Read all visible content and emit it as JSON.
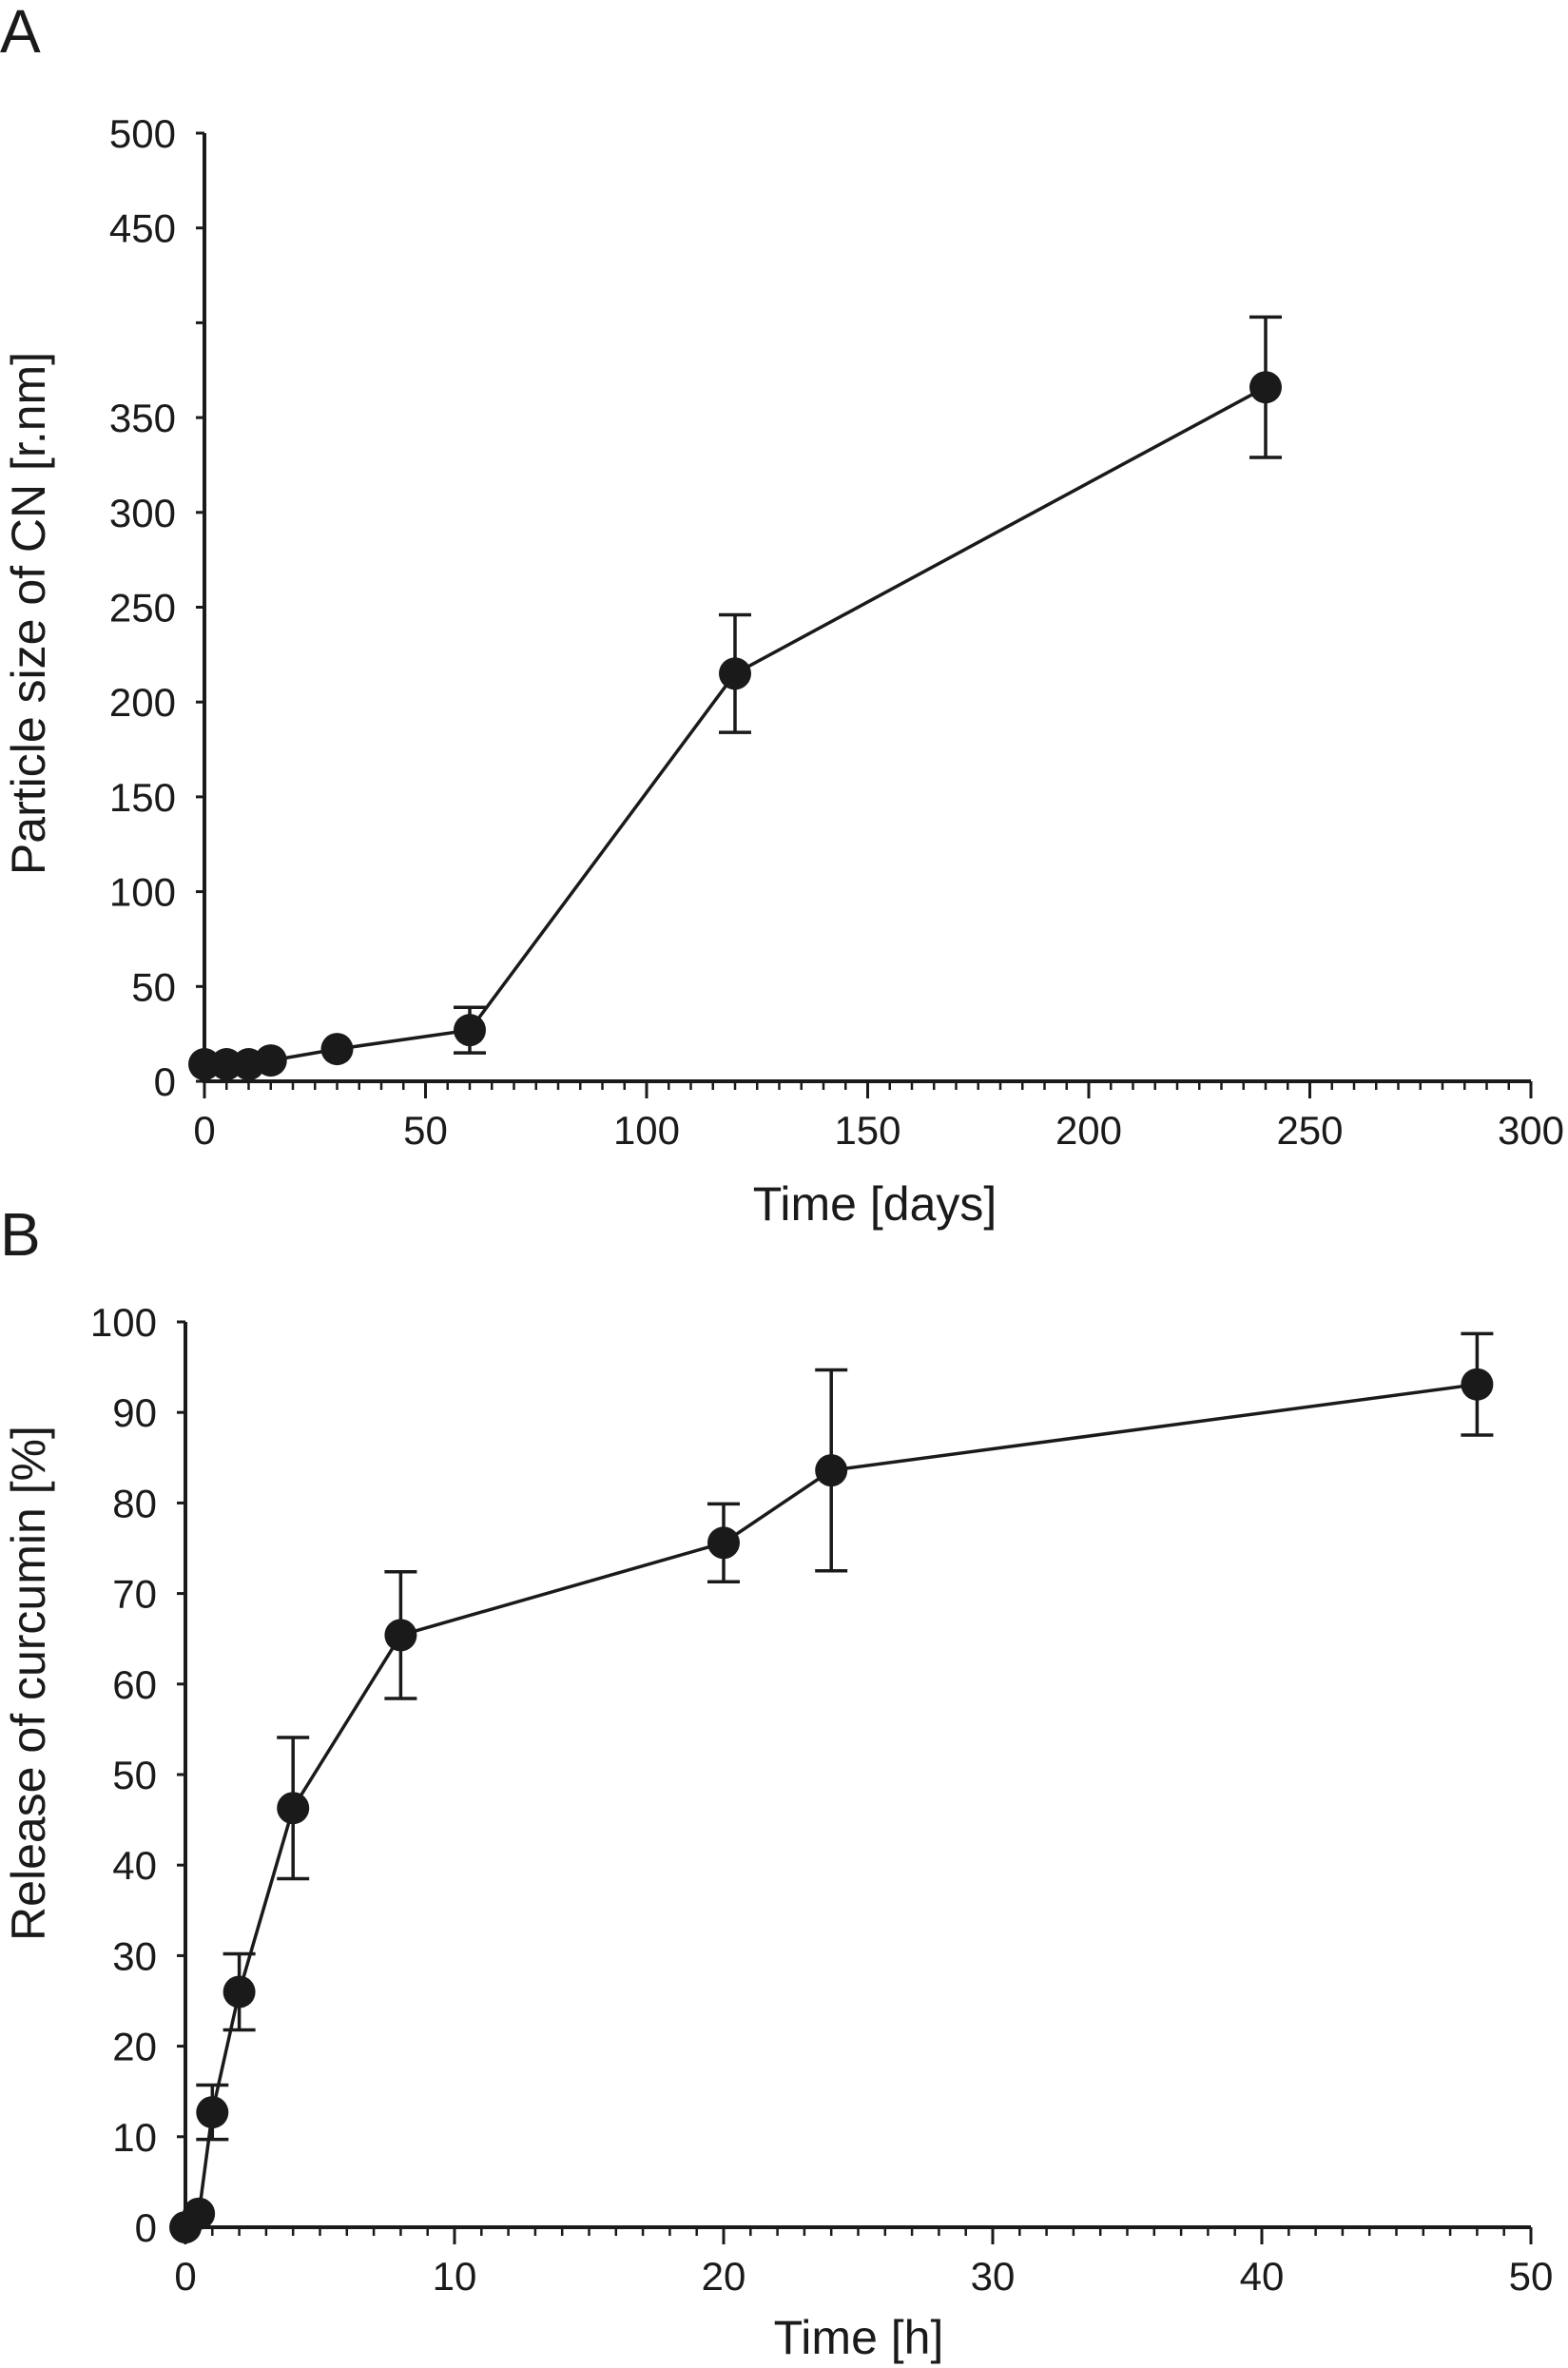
{
  "chart_data": [
    {
      "panel": "A",
      "type": "line",
      "title": "",
      "xlabel": "Time [days]",
      "ylabel": "Particle size of CN [r.nm]",
      "xlim": [
        0,
        300
      ],
      "ylim": [
        0,
        500
      ],
      "xticks": [
        0,
        50,
        100,
        150,
        200,
        250,
        300
      ],
      "xtick_labels": [
        "0",
        "50",
        "100",
        "150",
        "200",
        "250",
        "300"
      ],
      "yticks": [
        0,
        50,
        100,
        150,
        200,
        250,
        300,
        350,
        450,
        500
      ],
      "ytick_labels": [
        "0",
        "50",
        "100",
        "150",
        "200",
        "250",
        "300",
        "350",
        "450",
        "500"
      ],
      "grid": false,
      "series": [
        {
          "name": "Particle size",
          "x": [
            0,
            5,
            10,
            15,
            30,
            60,
            120,
            240
          ],
          "y": [
            9,
            9,
            9,
            11,
            17,
            27,
            215,
            366
          ],
          "err": [
            0,
            0,
            0,
            0,
            0,
            12,
            31,
            37
          ]
        }
      ]
    },
    {
      "panel": "B",
      "type": "line",
      "title": "",
      "xlabel": "Time [h]",
      "ylabel": "Release of curcumin [%]",
      "xlim": [
        0,
        50
      ],
      "ylim": [
        0,
        100
      ],
      "xticks": [
        0,
        10,
        20,
        30,
        40,
        50
      ],
      "xtick_labels": [
        "0",
        "10",
        "20",
        "30",
        "40",
        "50"
      ],
      "yticks": [
        0,
        10,
        20,
        30,
        40,
        50,
        60,
        70,
        80,
        90,
        100
      ],
      "ytick_labels": [
        "0",
        "10",
        "20",
        "30",
        "40",
        "50",
        "60",
        "70",
        "80",
        "90",
        "100"
      ],
      "grid": false,
      "series": [
        {
          "name": "Curcumin release",
          "x": [
            0,
            0.5,
            1,
            2,
            4,
            8,
            20,
            24,
            48
          ],
          "y": [
            0,
            1.5,
            12.7,
            26,
            46.3,
            65.4,
            75.6,
            83.6,
            93.1
          ],
          "err": [
            0,
            0,
            3,
            4.2,
            7.8,
            7,
            4.3,
            11.1,
            5.6
          ]
        }
      ]
    }
  ]
}
